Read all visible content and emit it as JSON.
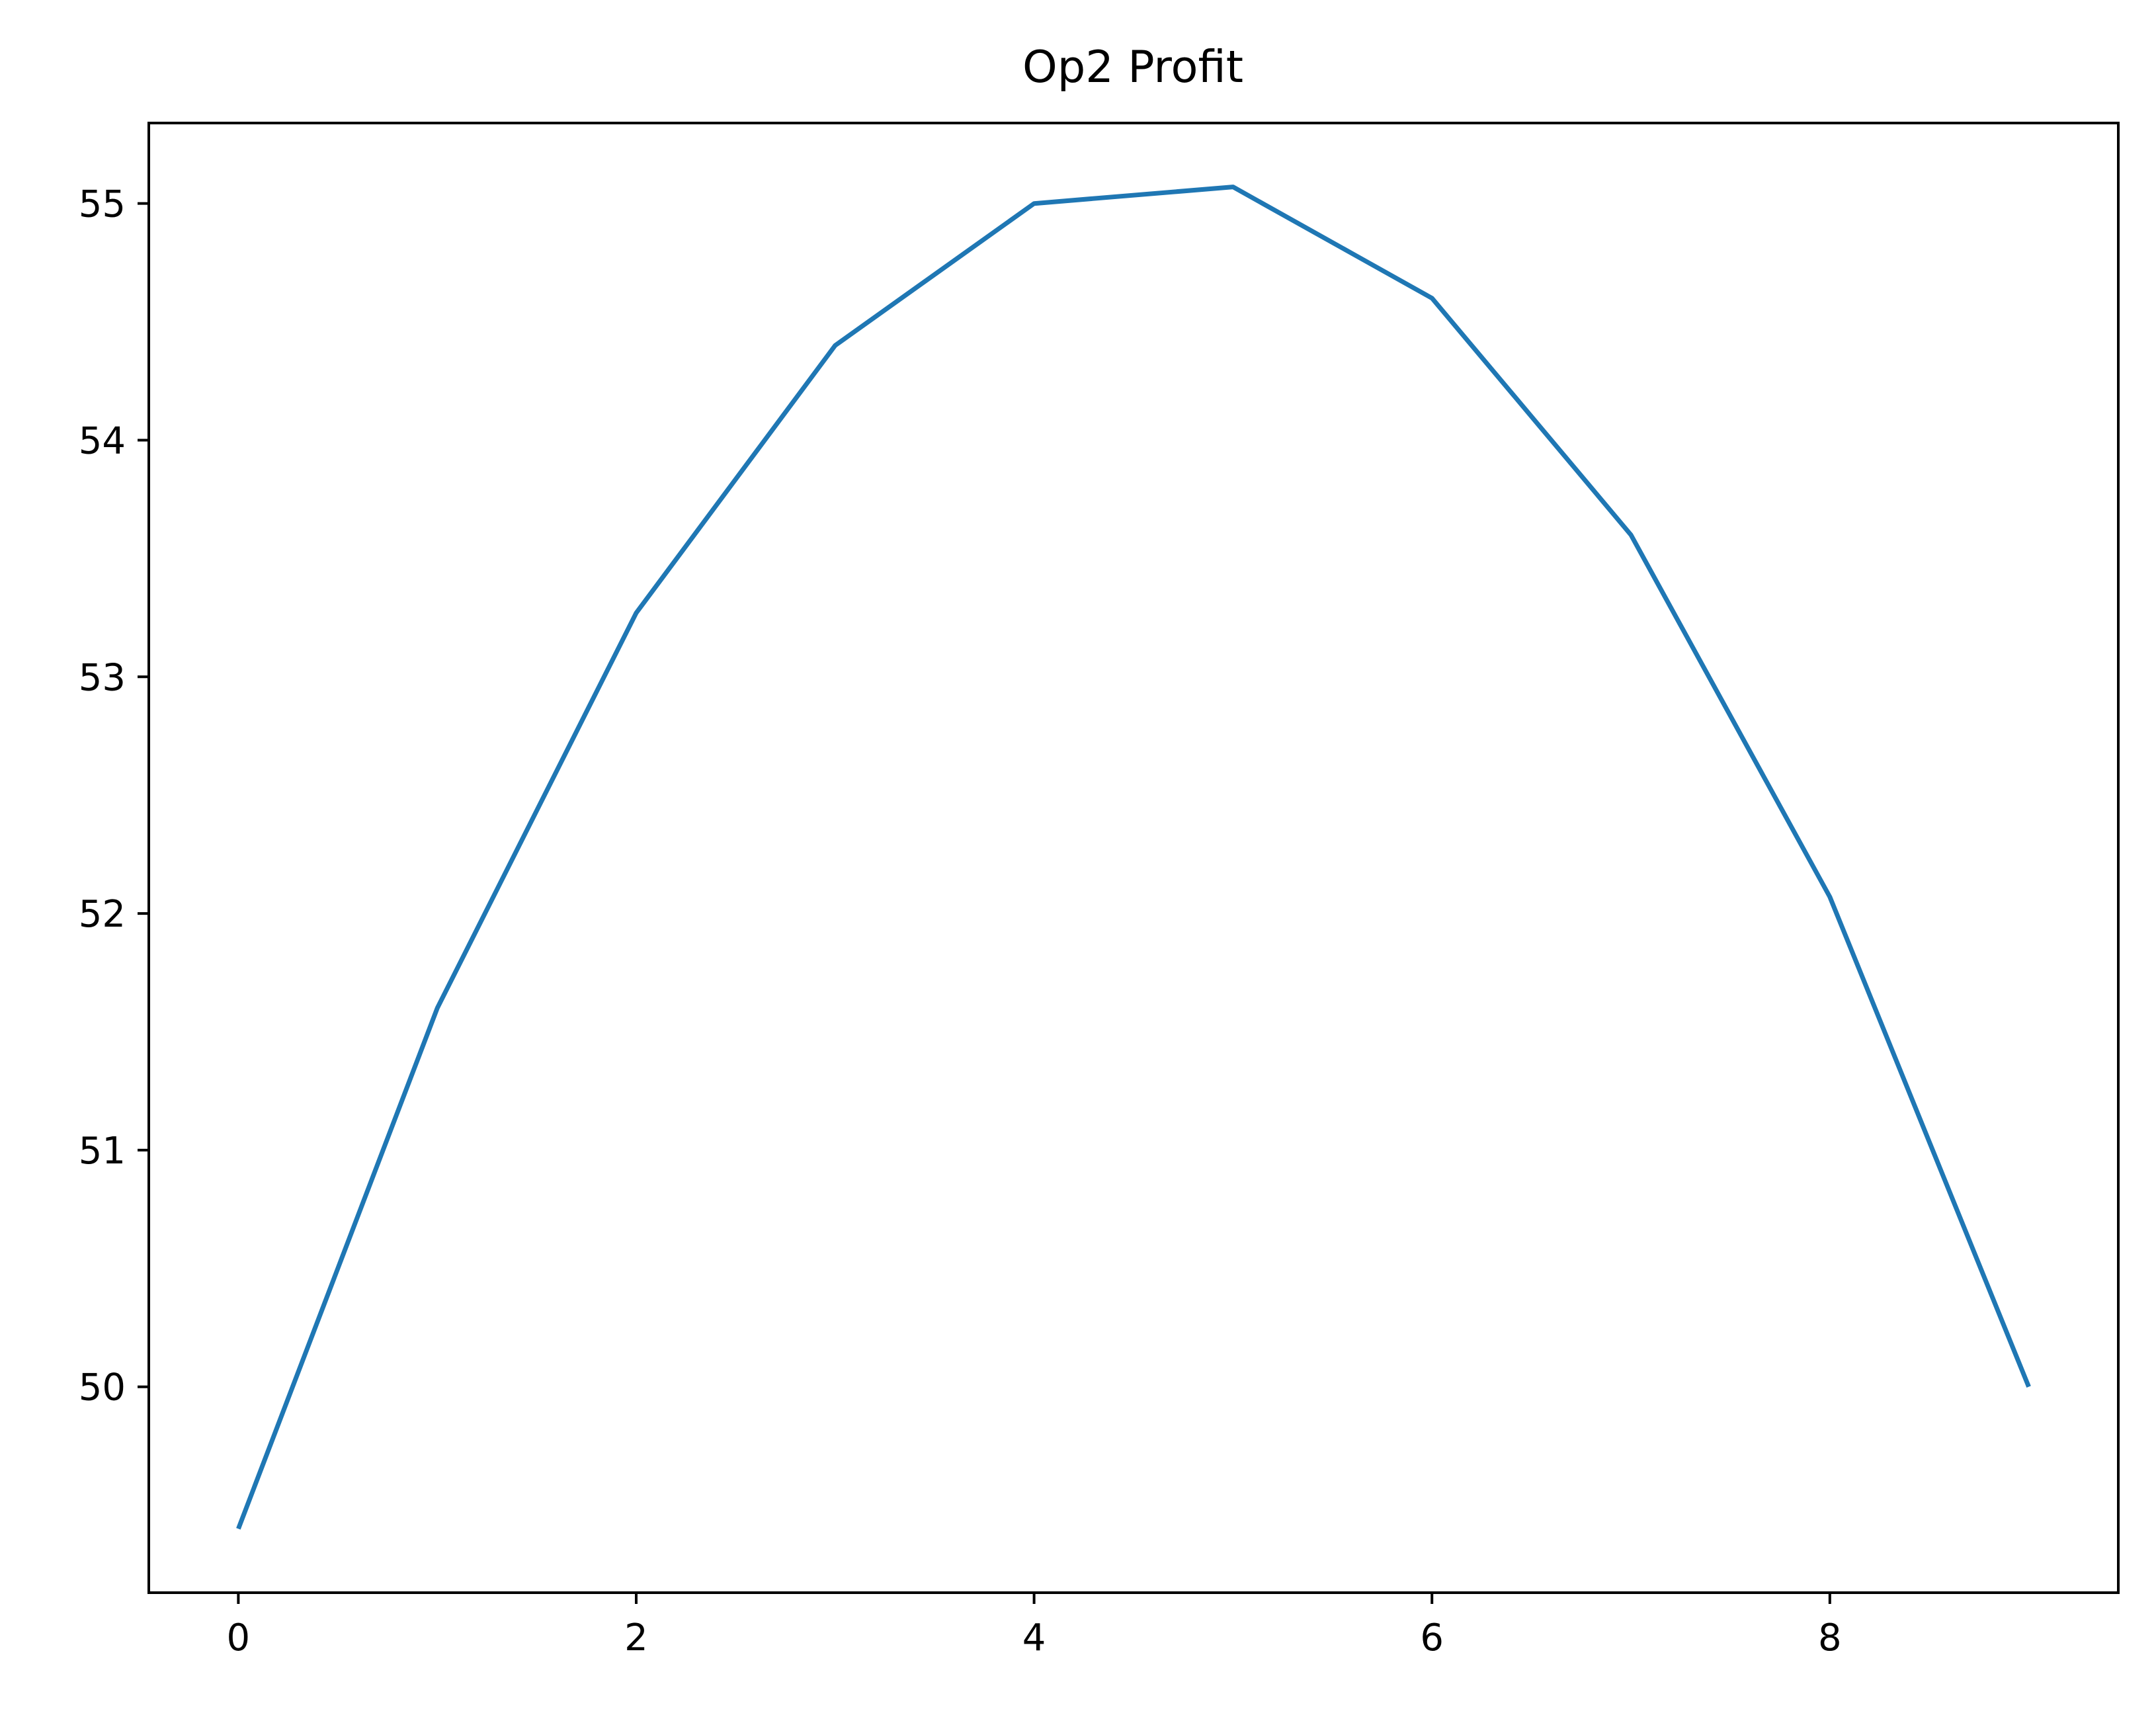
{
  "chart_data": {
    "type": "line",
    "title": "Op2 Profit",
    "xlabel": "",
    "ylabel": "",
    "x": [
      0,
      1,
      2,
      3,
      4,
      5,
      6,
      7,
      8,
      9
    ],
    "series": [
      {
        "values": [
          49.4,
          51.6,
          53.27,
          54.4,
          55.0,
          55.07,
          54.6,
          53.6,
          52.07,
          50.0
        ],
        "color": "#1f77b4"
      }
    ],
    "xlim": [
      -0.45,
      9.45
    ],
    "ylim": [
      49.13,
      55.34
    ],
    "xticks": [
      0,
      2,
      4,
      6,
      8
    ],
    "yticks": [
      50,
      51,
      52,
      53,
      54,
      55
    ],
    "grid": false,
    "legend": "none"
  }
}
